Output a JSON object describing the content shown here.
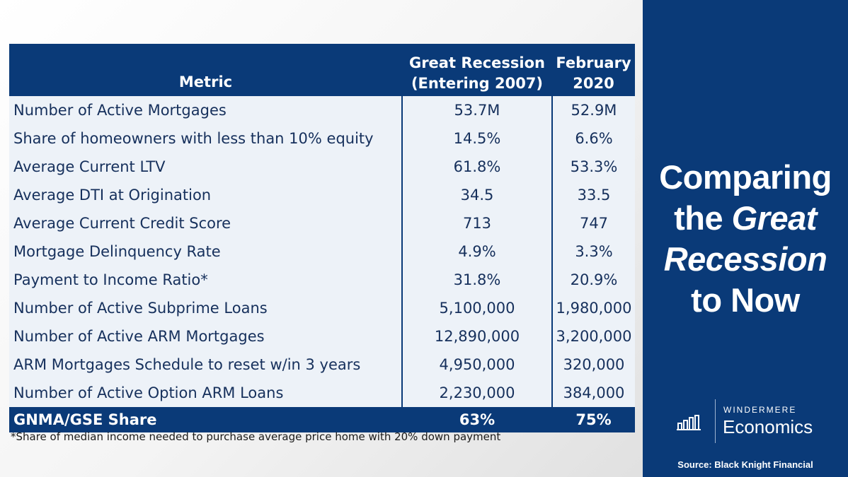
{
  "table": {
    "headers": {
      "metric": "Metric",
      "col1_line1": "Great Recession",
      "col1_line2": "(Entering 2007)",
      "col2_line1": "February",
      "col2_line2": "2020"
    },
    "rows": [
      {
        "metric": "Number of Active Mortgages",
        "great_recession": "53.7M",
        "feb_2020": "52.9M"
      },
      {
        "metric": "Share of homeowners with less than 10% equity",
        "great_recession": "14.5%",
        "feb_2020": "6.6%"
      },
      {
        "metric": "Average Current LTV",
        "great_recession": "61.8%",
        "feb_2020": "53.3%"
      },
      {
        "metric": "Average DTI at Origination",
        "great_recession": "34.5",
        "feb_2020": "33.5"
      },
      {
        "metric": "Average Current Credit Score",
        "great_recession": "713",
        "feb_2020": "747"
      },
      {
        "metric": "Mortgage Delinquency Rate",
        "great_recession": "4.9%",
        "feb_2020": "3.3%"
      },
      {
        "metric": "Payment to Income Ratio*",
        "great_recession": "31.8%",
        "feb_2020": "20.9%"
      },
      {
        "metric": "Number of Active Subprime Loans",
        "great_recession": "5,100,000",
        "feb_2020": "1,980,000"
      },
      {
        "metric": "Number of Active ARM Mortgages",
        "great_recession": "12,890,000",
        "feb_2020": "3,200,000"
      },
      {
        "metric": "ARM Mortgages Schedule to reset w/in 3 years",
        "great_recession": "4,950,000",
        "feb_2020": "320,000"
      },
      {
        "metric": "Number of Active Option ARM Loans",
        "great_recession": "2,230,000",
        "feb_2020": "384,000"
      }
    ],
    "footer": {
      "metric": "GNMA/GSE Share",
      "great_recession": "63%",
      "feb_2020": "75%"
    }
  },
  "footnote": "*Share of median income needed to purchase average price home with 20% down payment",
  "sidebar": {
    "title_line1": "Comparing",
    "title_line2_a": "the ",
    "title_line2_b": "Great",
    "title_line3": "Recession",
    "title_line4": "to Now",
    "brand_small": "WINDERMERE",
    "brand_big": "Economics",
    "source": "Source: Black Knight Financial"
  },
  "colors": {
    "navy": "#0a3a78",
    "row_bg": "#edf2f8",
    "row_text": "#16305c"
  },
  "icons": {
    "brand_logo": "bar-chart-icon"
  }
}
